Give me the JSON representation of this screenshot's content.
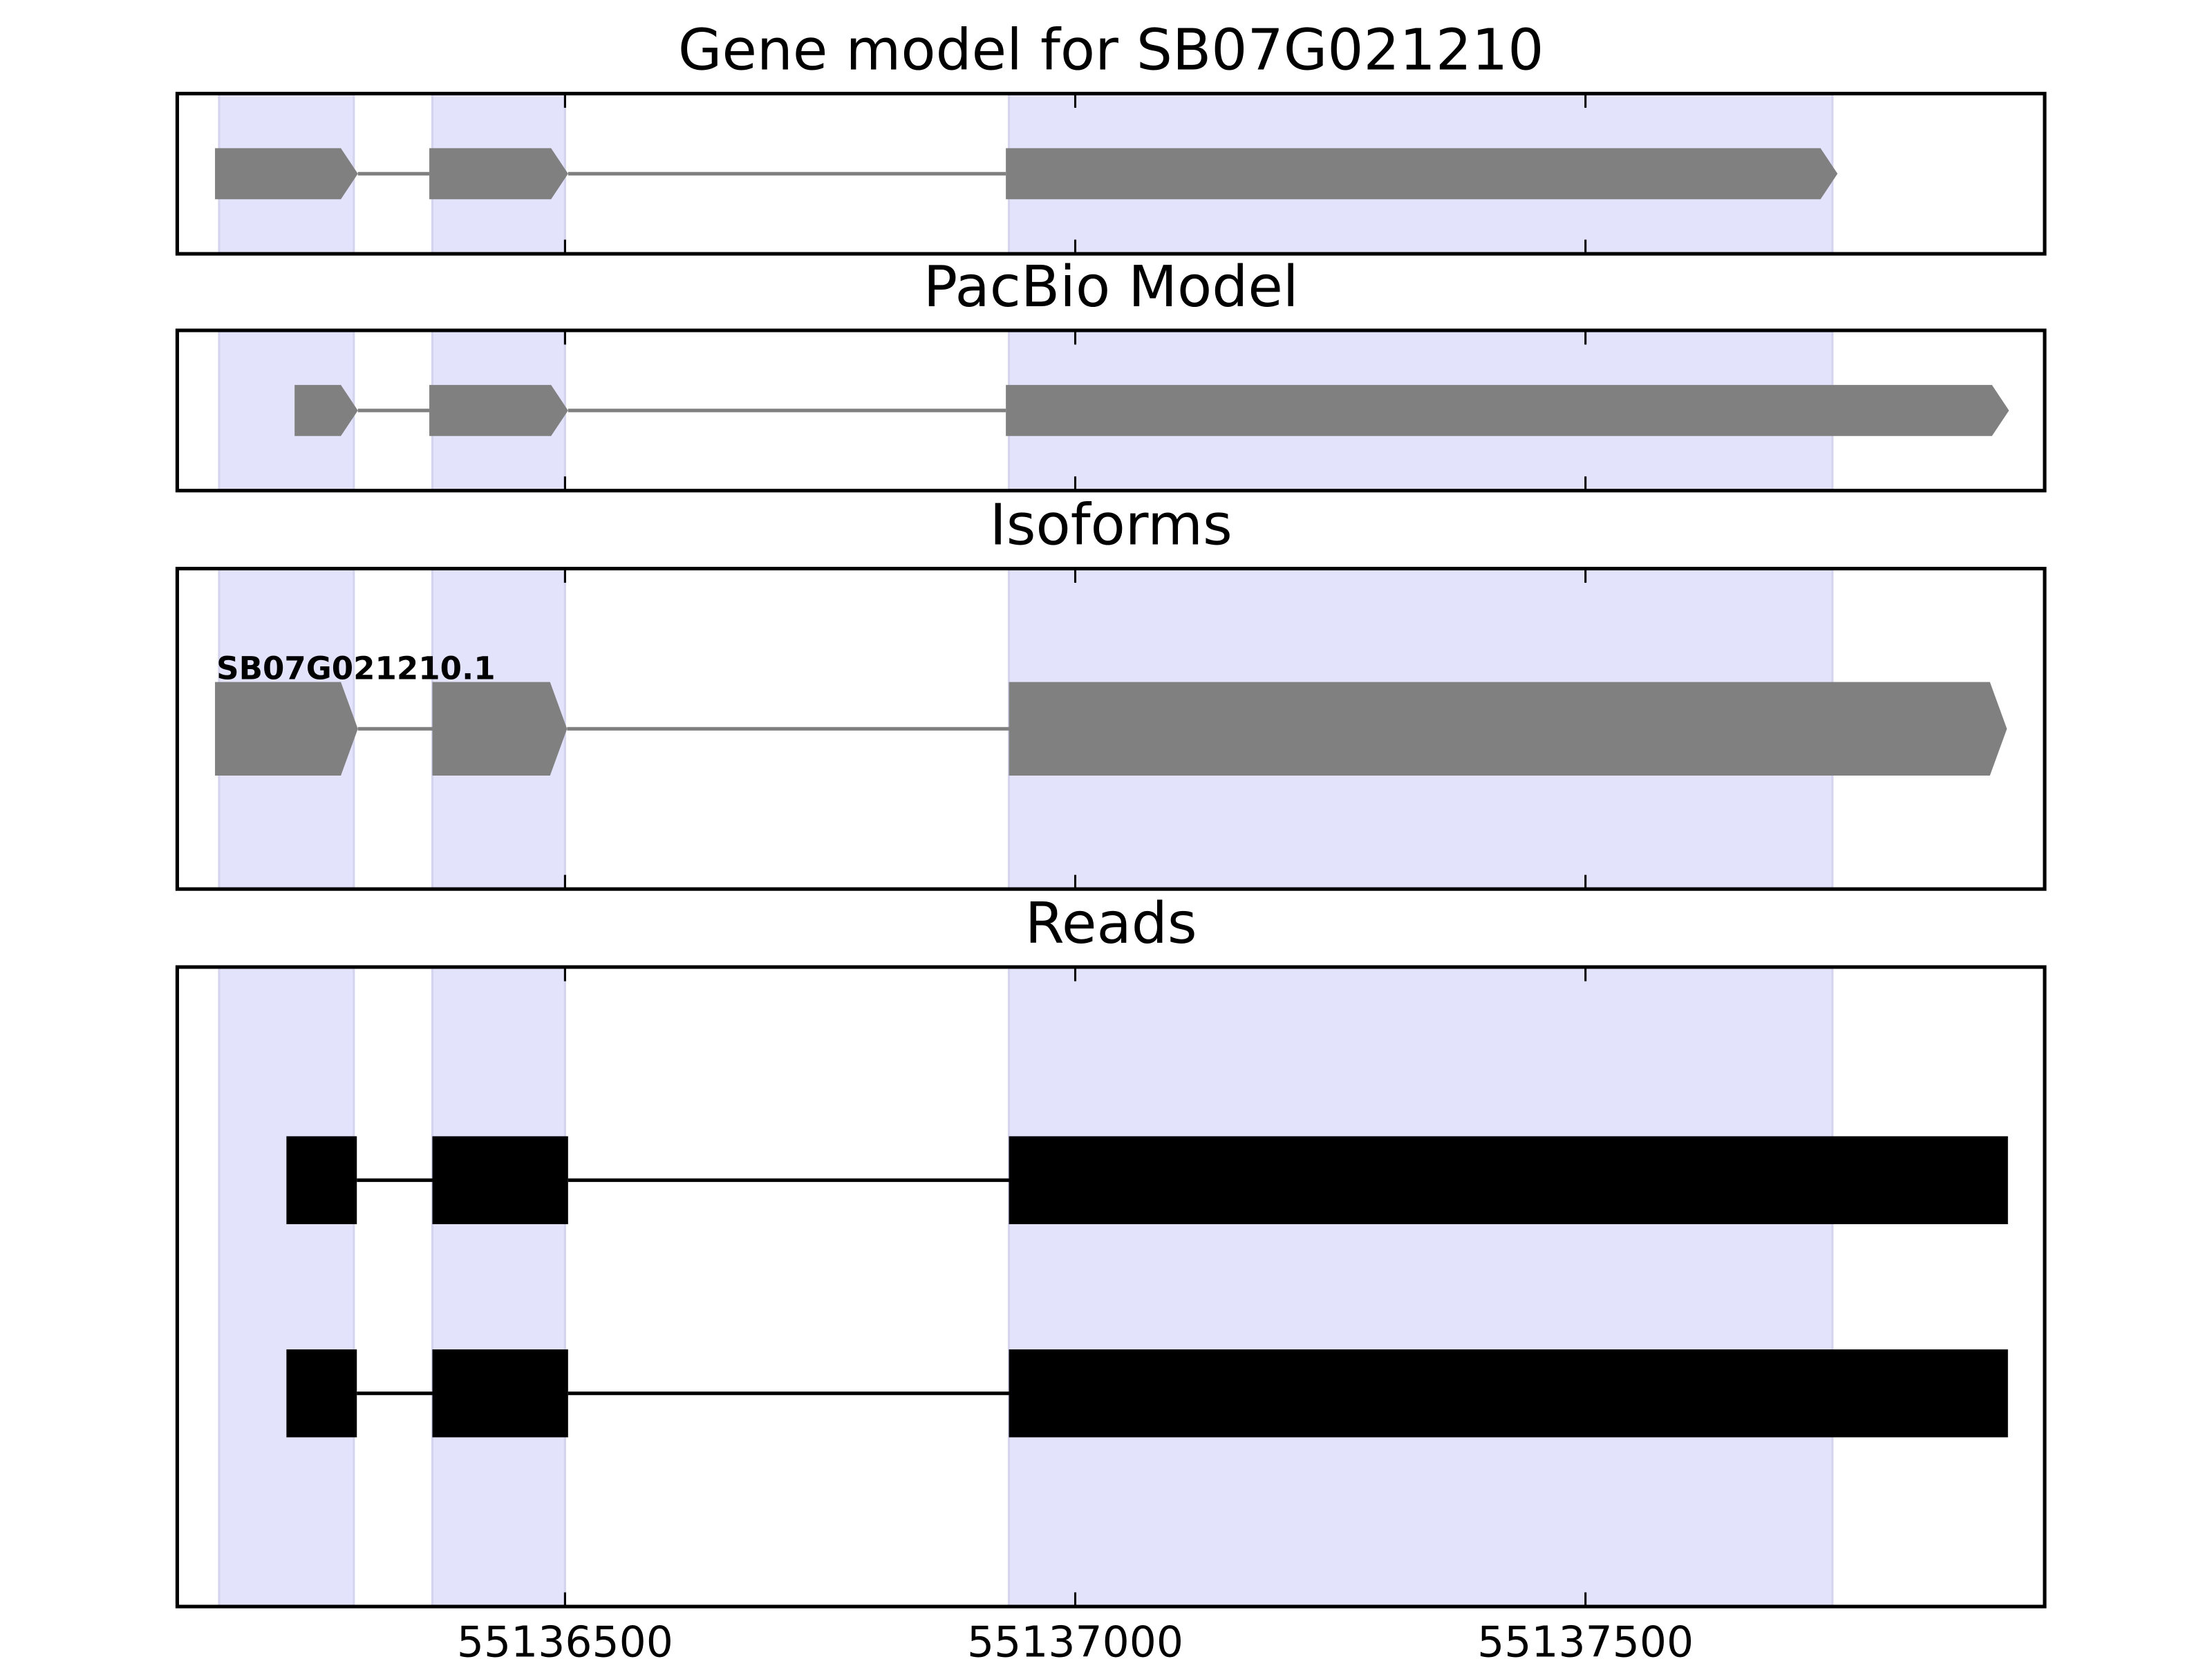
{
  "chart_data": {
    "type": "gene-tracks",
    "xlim": [
      55136120,
      55137950
    ],
    "xticks": [
      55136500,
      55137000,
      55137500
    ],
    "region_color": "#e3e3fc",
    "regions": [
      [
        55136161,
        55136293
      ],
      [
        55136370,
        55136500
      ],
      [
        55136935,
        55137742
      ]
    ],
    "tracks": [
      {
        "title": "Gene model for SB07G021210",
        "style": "arrow",
        "color": "#808080",
        "features": [
          {
            "exons": [
              [
                55136157,
                55136297
              ],
              [
                55136367,
                55136503
              ],
              [
                55136932,
                55137747
              ]
            ]
          }
        ]
      },
      {
        "title": "PacBio Model",
        "style": "arrow",
        "color": "#808080",
        "features": [
          {
            "exons": [
              [
                55136235,
                55136297
              ],
              [
                55136367,
                55136503
              ],
              [
                55136932,
                55137915
              ]
            ]
          }
        ]
      },
      {
        "title": "Isoforms",
        "style": "arrow",
        "color": "#808080",
        "features": [
          {
            "label": "SB07G021210.1",
            "exons": [
              [
                55136157,
                55136297
              ],
              [
                55136370,
                55136502
              ],
              [
                55136935,
                55137913
              ]
            ]
          }
        ]
      },
      {
        "title": "Reads",
        "style": "block",
        "color": "#000000",
        "features": [
          {
            "exons": [
              [
                55136227,
                55136296
              ],
              [
                55136370,
                55136503
              ],
              [
                55136935,
                55137914
              ]
            ]
          },
          {
            "exons": [
              [
                55136227,
                55136296
              ],
              [
                55136370,
                55136503
              ],
              [
                55136935,
                55137914
              ]
            ]
          }
        ]
      }
    ]
  }
}
